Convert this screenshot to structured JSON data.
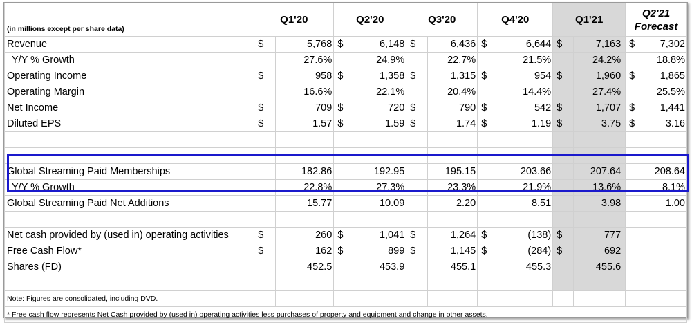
{
  "header": {
    "units_note": "(in millions except per share data)",
    "quarters": [
      "Q1'20",
      "Q2'20",
      "Q3'20",
      "Q4'20",
      "Q1'21"
    ],
    "forecast_line1": "Q2'21",
    "forecast_line2": "Forecast"
  },
  "currency_symbol": "$",
  "rows": {
    "revenue": {
      "label": "Revenue",
      "values": [
        "5,768",
        "6,148",
        "6,436",
        "6,644",
        "7,163",
        "7,302"
      ]
    },
    "revenue_growth": {
      "label": "Y/Y % Growth",
      "values": [
        "27.6%",
        "24.9%",
        "22.7%",
        "21.5%",
        "24.2%",
        "18.8%"
      ]
    },
    "operating_income": {
      "label": "Operating Income",
      "values": [
        "958",
        "1,358",
        "1,315",
        "954",
        "1,960",
        "1,865"
      ]
    },
    "operating_margin": {
      "label": "Operating Margin",
      "values": [
        "16.6%",
        "22.1%",
        "20.4%",
        "14.4%",
        "27.4%",
        "25.5%"
      ]
    },
    "net_income": {
      "label": "Net Income",
      "values": [
        "709",
        "720",
        "790",
        "542",
        "1,707",
        "1,441"
      ]
    },
    "diluted_eps": {
      "label": "Diluted EPS",
      "values": [
        "1.57",
        "1.59",
        "1.74",
        "1.19",
        "3.75",
        "3.16"
      ]
    },
    "paid_memberships": {
      "label": "Global Streaming Paid Memberships",
      "values": [
        "182.86",
        "192.95",
        "195.15",
        "203.66",
        "207.64",
        "208.64"
      ]
    },
    "membership_growth": {
      "label": "Y/Y % Growth",
      "values": [
        "22.8%",
        "27.3%",
        "23.3%",
        "21.9%",
        "13.6%",
        "8.1%"
      ]
    },
    "net_additions": {
      "label": "Global Streaming Paid Net Additions",
      "values": [
        "15.77",
        "10.09",
        "2.20",
        "8.51",
        "3.98",
        "1.00"
      ]
    },
    "operating_cash": {
      "label": "Net cash provided by (used in) operating activities",
      "values": [
        "260",
        "1,041",
        "1,264",
        "(138)",
        "777",
        ""
      ]
    },
    "free_cash_flow": {
      "label": "Free Cash Flow*",
      "values": [
        "162",
        "899",
        "1,145",
        "(284)",
        "692",
        ""
      ]
    },
    "shares": {
      "label": "Shares (FD)",
      "values": [
        "452.5",
        "453.9",
        "455.1",
        "455.3",
        "455.6",
        ""
      ]
    }
  },
  "notes": {
    "note1": "Note: Figures are consolidated, including DVD.",
    "note2": "* Free cash flow represents Net Cash provided by (used in) operating activities less purchases of property and equipment and change in other assets."
  },
  "colors": {
    "highlight_column": "#d8d8d8",
    "box_border": "#1a19cc"
  }
}
